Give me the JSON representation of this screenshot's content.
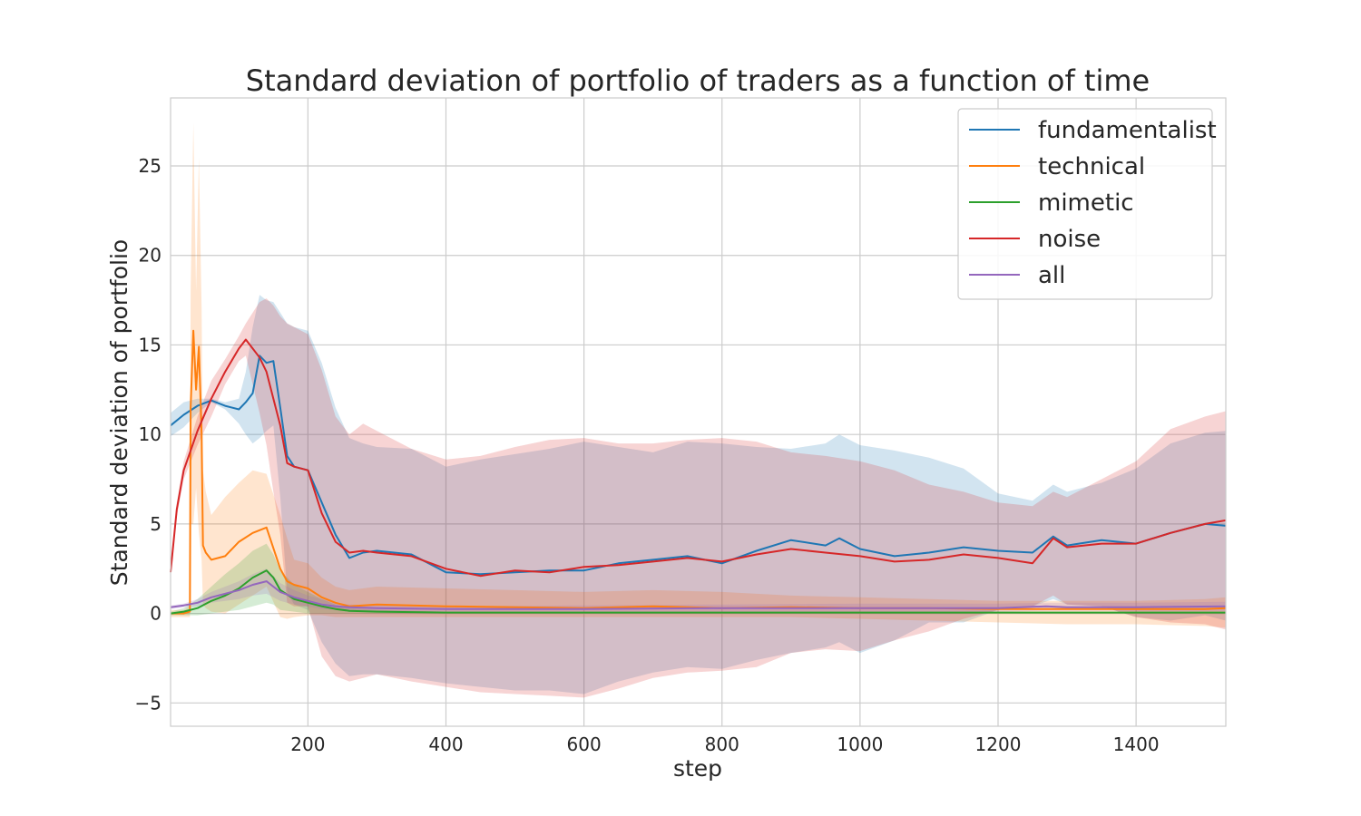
{
  "chart_data": {
    "type": "line",
    "title": "Standard deviation of portfolio of traders as a function of time",
    "xlabel": "step",
    "ylabel": "Standard deviation of portfolio",
    "xlim": [
      1,
      1530
    ],
    "ylim": [
      -6.3,
      28.8
    ],
    "xticks": [
      200,
      400,
      600,
      800,
      1000,
      1200,
      1400
    ],
    "xtick_labels": [
      "200",
      "400",
      "600",
      "800",
      "1000",
      "1200",
      "1400"
    ],
    "yticks": [
      -5,
      0,
      5,
      10,
      15,
      20,
      25
    ],
    "ytick_labels": [
      "−5",
      "0",
      "5",
      "10",
      "15",
      "20",
      "25"
    ],
    "grid": true,
    "legend_position": "top-right",
    "series": [
      {
        "name": "fundamentalist",
        "color": "#1f77b4",
        "x": [
          1,
          20,
          40,
          60,
          80,
          100,
          110,
          120,
          130,
          140,
          150,
          160,
          170,
          180,
          200,
          220,
          240,
          260,
          280,
          300,
          350,
          400,
          450,
          500,
          550,
          600,
          650,
          700,
          750,
          800,
          850,
          900,
          950,
          970,
          1000,
          1050,
          1100,
          1150,
          1200,
          1250,
          1280,
          1300,
          1350,
          1400,
          1450,
          1500,
          1530
        ],
        "values": [
          10.5,
          11.1,
          11.6,
          11.9,
          11.6,
          11.4,
          11.8,
          12.3,
          14.4,
          14.0,
          14.1,
          11.5,
          8.8,
          8.2,
          8.0,
          6.2,
          4.4,
          3.1,
          3.4,
          3.5,
          3.3,
          2.3,
          2.2,
          2.3,
          2.4,
          2.4,
          2.8,
          3.0,
          3.2,
          2.8,
          3.5,
          4.1,
          3.8,
          4.2,
          3.6,
          3.2,
          3.4,
          3.7,
          3.5,
          3.4,
          4.3,
          3.8,
          4.1,
          3.9,
          4.5,
          5.0,
          4.9
        ],
        "band_upper": [
          11.2,
          11.8,
          12.0,
          12.0,
          11.8,
          12.0,
          13.5,
          16.0,
          17.8,
          17.5,
          17.4,
          16.8,
          16.2,
          16.0,
          15.8,
          14.0,
          11.5,
          9.8,
          9.5,
          9.3,
          9.2,
          8.2,
          8.6,
          8.9,
          9.2,
          9.6,
          9.3,
          9.0,
          9.6,
          9.5,
          9.3,
          9.2,
          9.5,
          10.0,
          9.4,
          9.1,
          8.7,
          8.1,
          6.7,
          6.3,
          7.2,
          6.8,
          7.3,
          8.1,
          9.5,
          10.1,
          10.2
        ],
        "band_lower": [
          9.9,
          10.4,
          11.2,
          11.8,
          11.4,
          10.6,
          10.0,
          9.5,
          9.8,
          10.2,
          10.5,
          6.5,
          1.2,
          0.5,
          0.2,
          -1.6,
          -2.8,
          -3.5,
          -3.4,
          -3.4,
          -3.6,
          -3.9,
          -4.1,
          -4.3,
          -4.3,
          -4.5,
          -3.8,
          -3.3,
          -3.0,
          -3.1,
          -2.6,
          -2.2,
          -1.9,
          -1.6,
          -2.2,
          -1.5,
          -0.5,
          -0.5,
          0.2,
          0.4,
          0.8,
          0.5,
          0.4,
          -0.2,
          -0.4,
          -0.1,
          -0.4
        ]
      },
      {
        "name": "technical",
        "color": "#ff7f0e",
        "x": [
          1,
          20,
          29,
          30,
          34,
          38,
          42,
          46,
          48,
          52,
          60,
          80,
          100,
          120,
          140,
          160,
          170,
          180,
          200,
          220,
          240,
          260,
          300,
          400,
          500,
          600,
          700,
          800,
          900,
          1000,
          1100,
          1200,
          1300,
          1400,
          1500,
          1530
        ],
        "values": [
          0.0,
          0.0,
          0.1,
          11.5,
          15.8,
          12.5,
          14.9,
          10.0,
          3.8,
          3.4,
          3.0,
          3.2,
          4.0,
          4.5,
          4.8,
          2.5,
          1.8,
          1.6,
          1.4,
          0.9,
          0.6,
          0.4,
          0.5,
          0.4,
          0.35,
          0.3,
          0.4,
          0.3,
          0.35,
          0.3,
          0.3,
          0.25,
          0.25,
          0.25,
          0.25,
          0.3
        ],
        "band_upper": [
          0.2,
          0.2,
          0.4,
          18.0,
          27.4,
          18.0,
          25.5,
          17.0,
          8.0,
          6.8,
          5.5,
          6.5,
          7.3,
          8.0,
          7.8,
          5.5,
          4.2,
          3.0,
          2.8,
          2.0,
          1.5,
          1.3,
          1.5,
          1.4,
          1.3,
          1.2,
          1.3,
          1.2,
          1.0,
          0.9,
          0.8,
          0.7,
          0.7,
          0.7,
          0.8,
          0.9
        ],
        "band_lower": [
          -0.2,
          -0.2,
          -0.2,
          5.0,
          5.0,
          7.0,
          4.5,
          3.0,
          0.5,
          0.3,
          0.1,
          0.0,
          0.5,
          1.0,
          1.5,
          -0.2,
          -0.3,
          -0.2,
          -0.1,
          -0.1,
          -0.2,
          -0.2,
          -0.2,
          -0.2,
          -0.2,
          -0.2,
          -0.2,
          -0.2,
          -0.2,
          -0.3,
          -0.4,
          -0.5,
          -0.6,
          -0.6,
          -0.7,
          -0.8
        ]
      },
      {
        "name": "mimetic",
        "color": "#2ca02c",
        "x": [
          1,
          20,
          40,
          60,
          80,
          100,
          120,
          140,
          150,
          160,
          180,
          200,
          220,
          240,
          260,
          300,
          400,
          600,
          800,
          1000,
          1200,
          1400,
          1530
        ],
        "values": [
          0.0,
          0.1,
          0.3,
          0.7,
          1.0,
          1.4,
          2.0,
          2.4,
          2.0,
          1.3,
          0.8,
          0.6,
          0.4,
          0.25,
          0.15,
          0.1,
          0.05,
          0.05,
          0.05,
          0.05,
          0.05,
          0.05,
          0.05
        ],
        "band_upper": [
          0.1,
          0.3,
          0.8,
          1.5,
          2.2,
          2.8,
          3.5,
          3.9,
          3.3,
          2.4,
          1.6,
          1.2,
          0.8,
          0.5,
          0.3,
          0.2,
          0.1,
          0.1,
          0.1,
          0.1,
          0.1,
          0.1,
          0.1
        ],
        "band_lower": [
          -0.1,
          -0.1,
          -0.1,
          0.0,
          0.1,
          0.2,
          0.4,
          0.6,
          0.5,
          0.2,
          0.1,
          0.0,
          0.0,
          0.0,
          0.0,
          0.0,
          0.0,
          0.0,
          0.0,
          0.0,
          0.0,
          0.0,
          0.0
        ]
      },
      {
        "name": "noise",
        "color": "#d62728",
        "x": [
          1,
          10,
          20,
          40,
          60,
          80,
          100,
          110,
          120,
          130,
          140,
          150,
          160,
          170,
          180,
          200,
          220,
          240,
          260,
          280,
          300,
          350,
          400,
          450,
          500,
          550,
          600,
          650,
          700,
          750,
          800,
          850,
          900,
          950,
          1000,
          1050,
          1100,
          1150,
          1200,
          1250,
          1280,
          1300,
          1350,
          1400,
          1450,
          1500,
          1530
        ],
        "values": [
          2.3,
          5.8,
          8.0,
          10.2,
          12.0,
          13.5,
          14.8,
          15.3,
          14.8,
          14.3,
          13.5,
          12.0,
          10.5,
          8.4,
          8.2,
          8.0,
          5.6,
          4.0,
          3.4,
          3.5,
          3.4,
          3.2,
          2.5,
          2.1,
          2.4,
          2.3,
          2.6,
          2.7,
          2.9,
          3.1,
          2.9,
          3.3,
          3.6,
          3.4,
          3.2,
          2.9,
          3.0,
          3.3,
          3.1,
          2.8,
          4.2,
          3.7,
          3.9,
          3.9,
          4.5,
          5.0,
          5.2
        ],
        "band_upper": [
          2.5,
          6.2,
          8.5,
          11.0,
          13.0,
          14.2,
          15.5,
          16.2,
          16.8,
          17.4,
          17.6,
          17.2,
          16.6,
          16.2,
          16.0,
          15.6,
          13.6,
          11.0,
          10.0,
          10.6,
          10.2,
          9.2,
          8.6,
          8.8,
          9.3,
          9.7,
          9.8,
          9.5,
          9.5,
          9.7,
          9.8,
          9.6,
          9.0,
          8.8,
          8.5,
          8.0,
          7.2,
          6.8,
          6.2,
          6.0,
          6.8,
          6.5,
          7.5,
          8.5,
          10.3,
          11.0,
          11.3
        ],
        "band_lower": [
          2.1,
          5.4,
          7.5,
          9.4,
          11.0,
          12.8,
          14.1,
          14.4,
          12.8,
          11.2,
          9.4,
          6.8,
          4.4,
          0.6,
          0.4,
          0.4,
          -2.4,
          -3.5,
          -3.8,
          -3.6,
          -3.4,
          -3.8,
          -4.1,
          -4.4,
          -4.5,
          -4.6,
          -4.7,
          -4.2,
          -3.6,
          -3.3,
          -3.2,
          -3.0,
          -2.2,
          -2.0,
          -2.1,
          -1.5,
          -1.0,
          -0.3,
          0.2,
          0.4,
          1.0,
          0.5,
          0.4,
          -0.2,
          -0.5,
          -0.6,
          -0.9
        ]
      },
      {
        "name": "all",
        "color": "#9467bd",
        "x": [
          1,
          20,
          40,
          60,
          80,
          100,
          120,
          140,
          150,
          160,
          180,
          200,
          220,
          240,
          260,
          300,
          400,
          600,
          800,
          1000,
          1200,
          1270,
          1300,
          1400,
          1530
        ],
        "values": [
          0.35,
          0.45,
          0.6,
          0.9,
          1.1,
          1.3,
          1.6,
          1.8,
          1.5,
          1.2,
          0.9,
          0.7,
          0.5,
          0.4,
          0.35,
          0.3,
          0.25,
          0.25,
          0.3,
          0.3,
          0.3,
          0.4,
          0.35,
          0.35,
          0.4
        ],
        "band_upper": [
          0.45,
          0.55,
          0.8,
          1.2,
          1.5,
          1.8,
          2.2,
          2.5,
          2.1,
          1.7,
          1.3,
          1.0,
          0.8,
          0.6,
          0.5,
          0.45,
          0.4,
          0.45,
          0.5,
          0.55,
          0.55,
          0.6,
          0.6,
          0.6,
          0.65
        ],
        "band_lower": [
          0.25,
          0.35,
          0.4,
          0.6,
          0.7,
          0.8,
          1.0,
          1.1,
          0.9,
          0.7,
          0.5,
          0.4,
          0.25,
          0.2,
          0.2,
          0.15,
          0.1,
          0.1,
          0.1,
          0.1,
          0.1,
          0.15,
          0.15,
          0.15,
          0.15
        ]
      }
    ]
  }
}
